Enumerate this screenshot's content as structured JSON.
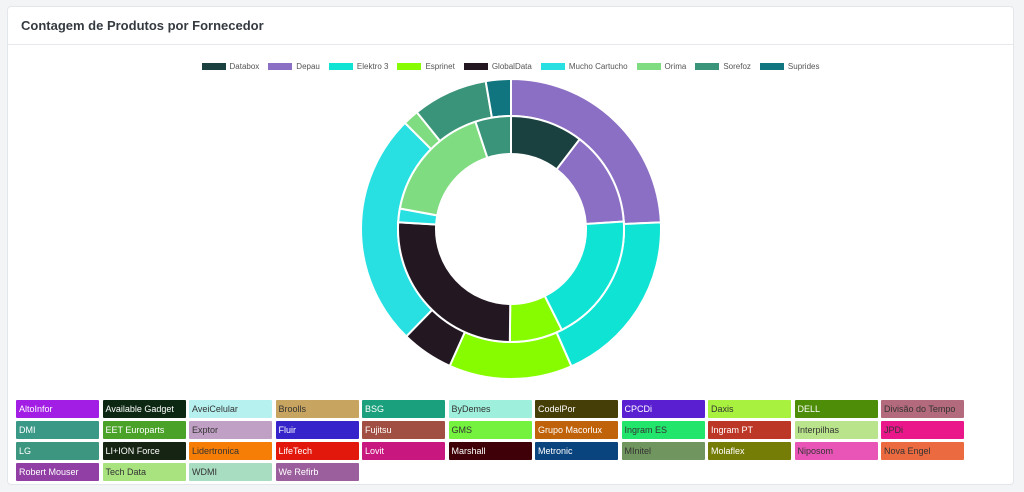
{
  "card": {
    "title": "Contagem de Produtos por Fornecedor"
  },
  "chart_data": {
    "type": "pie",
    "variant": "nested-doughnut",
    "legend_position": "top",
    "series_order": [
      "Databox",
      "Depau",
      "Elektro 3",
      "Esprinet",
      "GlobalData",
      "Mucho Cartucho",
      "Orima",
      "Sorefoz",
      "Suprides"
    ],
    "colors": {
      "Databox": "#1a4040",
      "Depau": "#8b6fc4",
      "Elektro 3": "#0fe3d3",
      "Esprinet": "#87fc00",
      "GlobalData": "#231821",
      "Mucho Cartucho": "#28e0e2",
      "Orima": "#7fdc80",
      "Sorefoz": "#3a9479",
      "Suprides": "#10757e"
    },
    "outer_ring": {
      "values": [
        0,
        24.3,
        19.1,
        13.3,
        5.6,
        25.2,
        1.7,
        8.1,
        2.7
      ]
    },
    "inner_ring": {
      "values": [
        9.6,
        12.5,
        17.2,
        7.0,
        23.8,
        1.8,
        15.7,
        4.7,
        0
      ]
    }
  },
  "vendors": [
    {
      "label": "AltoInfor",
      "bg": "#a21ee4",
      "fg": "#ffffff"
    },
    {
      "label": "Available Gadget",
      "bg": "#0c2812",
      "fg": "#ffffff"
    },
    {
      "label": "AveiCelular",
      "bg": "#b6f1ef",
      "fg": "#333333"
    },
    {
      "label": "Broolls",
      "bg": "#c7a45f",
      "fg": "#333333"
    },
    {
      "label": "BSG",
      "bg": "#1aa07d",
      "fg": "#ffffff"
    },
    {
      "label": "ByDemes",
      "bg": "#9ef0dc",
      "fg": "#333333"
    },
    {
      "label": "CodelPor",
      "bg": "#463e07",
      "fg": "#ffffff"
    },
    {
      "label": "CPCDi",
      "bg": "#5b1fd2",
      "fg": "#ffffff"
    },
    {
      "label": "Daxis",
      "bg": "#a8f13f",
      "fg": "#333333"
    },
    {
      "label": "DELL",
      "bg": "#4d8d08",
      "fg": "#ffffff"
    },
    {
      "label": "Divisão do Tempo",
      "bg": "#b26a7c",
      "fg": "#333333"
    },
    {
      "label": "DMI",
      "bg": "#3a9887",
      "fg": "#ffffff"
    },
    {
      "label": "EET Europarts",
      "bg": "#4aa229",
      "fg": "#ffffff"
    },
    {
      "label": "Exptor",
      "bg": "#c0a0c4",
      "fg": "#333333"
    },
    {
      "label": "Fluir",
      "bg": "#3623c9",
      "fg": "#ffffff"
    },
    {
      "label": "Fujitsu",
      "bg": "#a14f42",
      "fg": "#ffffff"
    },
    {
      "label": "GMS",
      "bg": "#74f23e",
      "fg": "#333333"
    },
    {
      "label": "Grupo Macorlux",
      "bg": "#c0620a",
      "fg": "#ffffff"
    },
    {
      "label": "Ingram ES",
      "bg": "#22e56c",
      "fg": "#333333"
    },
    {
      "label": "Ingram PT",
      "bg": "#bd3727",
      "fg": "#ffffff"
    },
    {
      "label": "Interpilhas",
      "bg": "#b9e48c",
      "fg": "#333333"
    },
    {
      "label": "JPDi",
      "bg": "#e9178a",
      "fg": "#333333"
    },
    {
      "label": "LG",
      "bg": "#3d9780",
      "fg": "#ffffff"
    },
    {
      "label": "LI+ION Force",
      "bg": "#162413",
      "fg": "#ffffff"
    },
    {
      "label": "Lidertronica",
      "bg": "#f77e06",
      "fg": "#333333"
    },
    {
      "label": "LifeTech",
      "bg": "#e2180d",
      "fg": "#ffffff"
    },
    {
      "label": "Lovit",
      "bg": "#c81880",
      "fg": "#ffffff"
    },
    {
      "label": "Marshall",
      "bg": "#3f0107",
      "fg": "#ffffff"
    },
    {
      "label": "Metronic",
      "bg": "#0a447e",
      "fg": "#ffffff"
    },
    {
      "label": "MInitel",
      "bg": "#70955e",
      "fg": "#333333"
    },
    {
      "label": "Molaflex",
      "bg": "#757d06",
      "fg": "#ffffff"
    },
    {
      "label": "Niposom",
      "bg": "#e955b7",
      "fg": "#333333"
    },
    {
      "label": "Nova Engel",
      "bg": "#eb6a40",
      "fg": "#333333"
    },
    {
      "label": "Robert Mouser",
      "bg": "#913fa4",
      "fg": "#ffffff"
    },
    {
      "label": "Tech Data",
      "bg": "#a9e37f",
      "fg": "#333333"
    },
    {
      "label": "WDMI",
      "bg": "#a8ddc2",
      "fg": "#333333"
    },
    {
      "label": "We Refirb",
      "bg": "#9c5f9d",
      "fg": "#ffffff"
    }
  ]
}
